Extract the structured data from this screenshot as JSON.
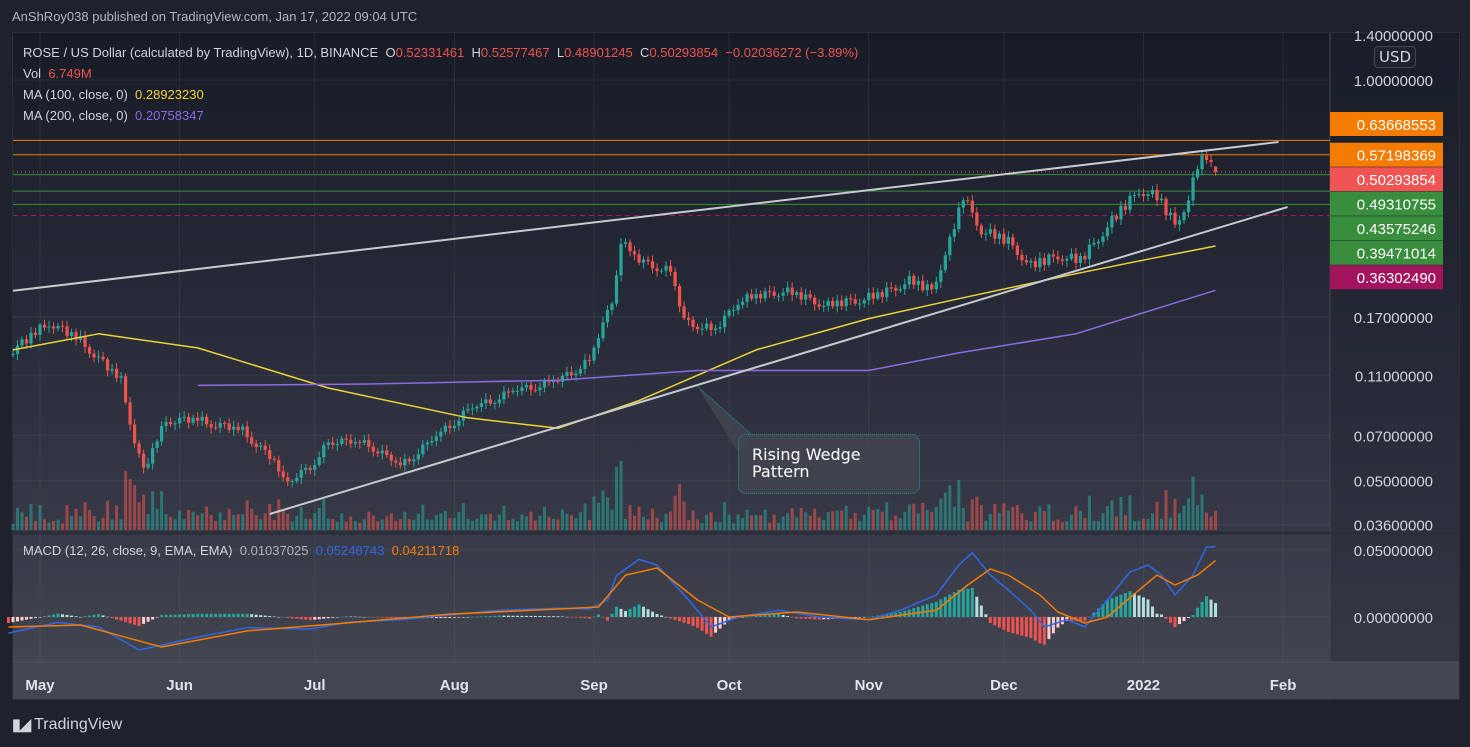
{
  "publisher_line": "AnShRoy038 published on TradingView.com, Jan 17, 2022 09:04 UTC",
  "legend": {
    "symbol": "ROSE / US Dollar (calculated by TradingView), 1D, BINANCE",
    "o_label": "O",
    "o": "0.52331461",
    "h_label": "H",
    "h": "0.52577467",
    "l_label": "L",
    "l": "0.48901245",
    "c_label": "C",
    "c": "0.50293854",
    "change": "−0.02036272 (−3.89%)",
    "vol_label": "Vol",
    "vol": "6.749M",
    "ma100_label": "MA (100, close, 0)",
    "ma100": "0.28923230",
    "ma200_label": "MA (200, close, 0)",
    "ma200": "0.20758347"
  },
  "macd_legend": {
    "label": "MACD (12, 26, close, 9, EMA, EMA)",
    "hist": "0.01037025",
    "macd": "0.05248743",
    "signal": "0.04211718"
  },
  "price_scale": {
    "currency": "USD",
    "ticks": [
      {
        "value": 1.4,
        "label": "1.40000000"
      },
      {
        "value": 1.0,
        "label": "1.00000000"
      },
      {
        "value": 0.17,
        "label": "0.17000000"
      },
      {
        "value": 0.11,
        "label": "0.11000000"
      },
      {
        "value": 0.07,
        "label": "0.07000000"
      },
      {
        "value": 0.05,
        "label": "0.05000000"
      },
      {
        "value": 0.036,
        "label": "0.03600000"
      }
    ],
    "macd_ticks": [
      {
        "value": 0.05,
        "label": "0.05000000"
      },
      {
        "value": 0.0,
        "label": "0.00000000"
      }
    ]
  },
  "levels": [
    {
      "value": 0.63668553,
      "label": "0.63668553",
      "color": "#f57c00",
      "style": "solid"
    },
    {
      "value": 0.57198369,
      "label": "0.57198369",
      "color": "#f57c00",
      "style": "solid"
    },
    {
      "value": 0.50293854,
      "label": "0.50293854",
      "color": "#f05454",
      "style": "dotted"
    },
    {
      "value": 0.49310755,
      "label": "0.49310755",
      "color": "#388e3c",
      "style": "solid"
    },
    {
      "value": 0.43575246,
      "label": "0.43575246",
      "color": "#388e3c",
      "style": "solid"
    },
    {
      "value": 0.39471014,
      "label": "0.39471014",
      "color": "#388e3c",
      "style": "solid"
    },
    {
      "value": 0.3630249,
      "label": "0.36302490",
      "color": "#a3145f",
      "style": "dashed"
    }
  ],
  "annotation": {
    "line1": "Rising Wedge",
    "line2": "Pattern"
  },
  "brand": "TradingView",
  "colors": {
    "up": "#26a69a",
    "down": "#ef5350",
    "ma100": "#f0d33a",
    "ma200": "#8d6be6",
    "macd": "#2f67e6",
    "signal": "#f57c00",
    "wedge": "#c8cad0"
  },
  "chart_data": {
    "type": "candlestick",
    "y_scale": "log",
    "ylim": [
      0.034,
      1.5
    ],
    "grid": true,
    "x_ticks": [
      {
        "date": "2021-05-01",
        "label": "May"
      },
      {
        "date": "2021-06-01",
        "label": "Jun"
      },
      {
        "date": "2021-07-01",
        "label": "Jul"
      },
      {
        "date": "2021-08-01",
        "label": "Aug"
      },
      {
        "date": "2021-09-01",
        "label": "Sep"
      },
      {
        "date": "2021-10-01",
        "label": "Oct"
      },
      {
        "date": "2021-11-01",
        "label": "Nov"
      },
      {
        "date": "2021-12-01",
        "label": "Dec"
      },
      {
        "date": "2022-01-01",
        "label": "2022"
      },
      {
        "date": "2022-02-01",
        "label": "Feb"
      }
    ],
    "close_path": [
      [
        "2021-04-25",
        0.133
      ],
      [
        "2021-05-03",
        0.164
      ],
      [
        "2021-05-10",
        0.143
      ],
      [
        "2021-05-19",
        0.106
      ],
      [
        "2021-05-22",
        0.068
      ],
      [
        "2021-05-24",
        0.054
      ],
      [
        "2021-05-29",
        0.079
      ],
      [
        "2021-06-05",
        0.079
      ],
      [
        "2021-06-15",
        0.073
      ],
      [
        "2021-06-22",
        0.058
      ],
      [
        "2021-06-24",
        0.05
      ],
      [
        "2021-07-01",
        0.056
      ],
      [
        "2021-07-04",
        0.068
      ],
      [
        "2021-07-13",
        0.066
      ],
      [
        "2021-07-20",
        0.056
      ],
      [
        "2021-07-26",
        0.066
      ],
      [
        "2021-08-04",
        0.085
      ],
      [
        "2021-08-14",
        0.098
      ],
      [
        "2021-08-24",
        0.106
      ],
      [
        "2021-08-31",
        0.123
      ],
      [
        "2021-09-05",
        0.193
      ],
      [
        "2021-09-07",
        0.3
      ],
      [
        "2021-09-11",
        0.26
      ],
      [
        "2021-09-18",
        0.24
      ],
      [
        "2021-09-21",
        0.166
      ],
      [
        "2021-09-28",
        0.154
      ],
      [
        "2021-10-03",
        0.193
      ],
      [
        "2021-10-13",
        0.208
      ],
      [
        "2021-10-23",
        0.186
      ],
      [
        "2021-11-03",
        0.2
      ],
      [
        "2021-11-10",
        0.224
      ],
      [
        "2021-11-15",
        0.208
      ],
      [
        "2021-11-19",
        0.3
      ],
      [
        "2021-11-22",
        0.42
      ],
      [
        "2021-11-26",
        0.326
      ],
      [
        "2021-12-02",
        0.3
      ],
      [
        "2021-12-07",
        0.25
      ],
      [
        "2021-12-13",
        0.27
      ],
      [
        "2021-12-18",
        0.26
      ],
      [
        "2021-12-25",
        0.35
      ],
      [
        "2021-12-31",
        0.44
      ],
      [
        "2022-01-04",
        0.42
      ],
      [
        "2022-01-08",
        0.34
      ],
      [
        "2022-01-11",
        0.41
      ],
      [
        "2022-01-13",
        0.53
      ],
      [
        "2022-01-15",
        0.57
      ],
      [
        "2022-01-16",
        0.5233
      ]
    ],
    "last_candle": {
      "date": "2022-01-17",
      "open": 0.52331461,
      "high": 0.52577467,
      "low": 0.48901245,
      "close": 0.50293854,
      "volume": "6.749M"
    },
    "ma100": [
      [
        "2021-04-25",
        0.133
      ],
      [
        "2021-05-14",
        0.15
      ],
      [
        "2021-06-05",
        0.135
      ],
      [
        "2021-07-04",
        0.1
      ],
      [
        "2021-08-04",
        0.08
      ],
      [
        "2021-08-24",
        0.074
      ],
      [
        "2021-09-11",
        0.091
      ],
      [
        "2021-10-07",
        0.133
      ],
      [
        "2021-11-01",
        0.168
      ],
      [
        "2021-11-21",
        0.195
      ],
      [
        "2021-12-17",
        0.235
      ],
      [
        "2022-01-02",
        0.262
      ],
      [
        "2022-01-17",
        0.2892
      ]
    ],
    "ma200": [
      [
        "2021-06-05",
        0.102
      ],
      [
        "2021-07-13",
        0.103
      ],
      [
        "2021-08-24",
        0.106
      ],
      [
        "2021-09-24",
        0.114
      ],
      [
        "2021-11-01",
        0.114
      ],
      [
        "2021-11-21",
        0.13
      ],
      [
        "2021-12-17",
        0.15
      ],
      [
        "2022-01-17",
        0.2076
      ]
    ],
    "wedge_upper": [
      [
        "2021-04-25",
        0.207
      ],
      [
        "2022-01-31",
        0.629
      ]
    ],
    "wedge_lower": [
      [
        "2021-06-21",
        0.039
      ],
      [
        "2022-02-02",
        0.387
      ]
    ],
    "macd": {
      "ylim": [
        -0.032,
        0.062
      ],
      "macd_line": [
        [
          "2021-04-24",
          -0.012
        ],
        [
          "2021-05-05",
          -0.004
        ],
        [
          "2021-05-14",
          -0.0075
        ],
        [
          "2021-05-23",
          -0.0246
        ],
        [
          "2021-05-28",
          -0.021
        ],
        [
          "2021-06-05",
          -0.015
        ],
        [
          "2021-06-16",
          -0.008
        ],
        [
          "2021-06-30",
          -0.009
        ],
        [
          "2021-07-08",
          -0.004
        ],
        [
          "2021-07-20",
          -0.002
        ],
        [
          "2021-07-31",
          0.0015
        ],
        [
          "2021-08-11",
          0.005
        ],
        [
          "2021-08-24",
          0.0066
        ],
        [
          "2021-08-31",
          0.006
        ],
        [
          "2021-09-04",
          0.0127
        ],
        [
          "2021-09-06",
          0.031
        ],
        [
          "2021-09-11",
          0.043
        ],
        [
          "2021-09-15",
          0.0388
        ],
        [
          "2021-09-22",
          0.0127
        ],
        [
          "2021-09-27",
          -0.0075
        ],
        [
          "2021-10-03",
          0.0
        ],
        [
          "2021-10-12",
          0.005
        ],
        [
          "2021-10-21",
          0.0
        ],
        [
          "2021-11-01",
          -0.002
        ],
        [
          "2021-11-08",
          0.005
        ],
        [
          "2021-11-16",
          0.0164
        ],
        [
          "2021-11-21",
          0.0388
        ],
        [
          "2021-11-24",
          0.048
        ],
        [
          "2021-11-28",
          0.0313
        ],
        [
          "2021-12-02",
          0.0201
        ],
        [
          "2021-12-07",
          0.005
        ],
        [
          "2021-12-10",
          -0.0075
        ],
        [
          "2021-12-15",
          -0.002
        ],
        [
          "2021-12-19",
          -0.0075
        ],
        [
          "2021-12-24",
          0.0127
        ],
        [
          "2021-12-29",
          0.0336
        ],
        [
          "2022-01-02",
          0.0388
        ],
        [
          "2022-01-05",
          0.0313
        ],
        [
          "2022-01-08",
          0.0164
        ],
        [
          "2022-01-12",
          0.0313
        ],
        [
          "2022-01-15",
          0.0522
        ],
        [
          "2022-01-17",
          0.0525
        ]
      ],
      "signal_line": [
        [
          "2021-04-24",
          -0.0075
        ],
        [
          "2021-05-10",
          -0.006
        ],
        [
          "2021-05-28",
          -0.0224
        ],
        [
          "2021-06-16",
          -0.0104
        ],
        [
          "2021-07-08",
          -0.0045
        ],
        [
          "2021-07-31",
          0.0022
        ],
        [
          "2021-08-24",
          0.006
        ],
        [
          "2021-09-02",
          0.0075
        ],
        [
          "2021-09-08",
          0.0313
        ],
        [
          "2021-09-15",
          0.0366
        ],
        [
          "2021-09-24",
          0.0127
        ],
        [
          "2021-10-01",
          0.0
        ],
        [
          "2021-10-16",
          0.0037
        ],
        [
          "2021-11-01",
          -0.002
        ],
        [
          "2021-11-16",
          0.005
        ],
        [
          "2021-11-23",
          0.0239
        ],
        [
          "2021-11-28",
          0.0358
        ],
        [
          "2021-12-02",
          0.0313
        ],
        [
          "2021-12-09",
          0.0164
        ],
        [
          "2021-12-13",
          0.0037
        ],
        [
          "2021-12-19",
          -0.0045
        ],
        [
          "2021-12-24",
          0.0
        ],
        [
          "2021-12-31",
          0.0201
        ],
        [
          "2022-01-04",
          0.0313
        ],
        [
          "2022-01-08",
          0.0239
        ],
        [
          "2022-01-13",
          0.0313
        ],
        [
          "2022-01-17",
          0.0421
        ]
      ]
    }
  }
}
